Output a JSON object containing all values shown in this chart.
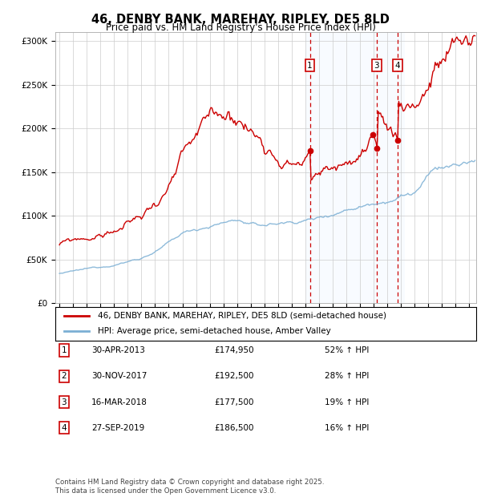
{
  "title": "46, DENBY BANK, MAREHAY, RIPLEY, DE5 8LD",
  "subtitle": "Price paid vs. HM Land Registry's House Price Index (HPI)",
  "ylabel_ticks": [
    "£0",
    "£50K",
    "£100K",
    "£150K",
    "£200K",
    "£250K",
    "£300K"
  ],
  "ytick_values": [
    0,
    50000,
    100000,
    150000,
    200000,
    250000,
    300000
  ],
  "ylim": [
    0,
    310000
  ],
  "xlim_start": 1994.7,
  "xlim_end": 2025.5,
  "sales": [
    {
      "date": 2013.33,
      "price": 174950,
      "label": "1",
      "show_vline": true,
      "show_box": true
    },
    {
      "date": 2017.92,
      "price": 192500,
      "label": "2",
      "show_vline": false,
      "show_box": false
    },
    {
      "date": 2018.21,
      "price": 177500,
      "label": "3",
      "show_vline": true,
      "show_box": true
    },
    {
      "date": 2019.75,
      "price": 186500,
      "label": "4",
      "show_vline": true,
      "show_box": true
    }
  ],
  "shade_start": 2013.0,
  "shade_end": 2020.3,
  "legend_property_label": "46, DENBY BANK, MAREHAY, RIPLEY, DE5 8LD (semi-detached house)",
  "legend_hpi_label": "HPI: Average price, semi-detached house, Amber Valley",
  "footer": "Contains HM Land Registry data © Crown copyright and database right 2025.\nThis data is licensed under the Open Government Licence v3.0.",
  "table_rows": [
    {
      "num": "1",
      "date": "30-APR-2013",
      "price": "£174,950",
      "change": "52% ↑ HPI"
    },
    {
      "num": "2",
      "date": "30-NOV-2017",
      "price": "£192,500",
      "change": "28% ↑ HPI"
    },
    {
      "num": "3",
      "date": "16-MAR-2018",
      "price": "£177,500",
      "change": "19% ↑ HPI"
    },
    {
      "num": "4",
      "date": "27-SEP-2019",
      "price": "£186,500",
      "change": "16% ↑ HPI"
    }
  ],
  "property_color": "#cc0000",
  "hpi_color": "#7bafd4",
  "background_color": "#ffffff",
  "grid_color": "#cccccc",
  "shade_color": "#ddeeff"
}
